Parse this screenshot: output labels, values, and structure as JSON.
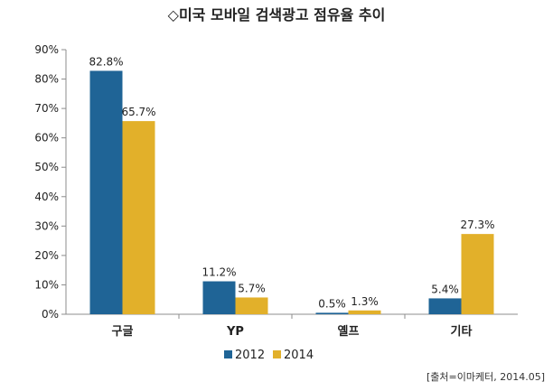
{
  "chart_data": {
    "type": "bar",
    "title": "◇미국 모바일 검색광고 점유율 추이",
    "categories": [
      "구글",
      "YP",
      "옐프",
      "기타"
    ],
    "series": [
      {
        "name": "2012",
        "values": [
          82.8,
          11.2,
          0.5,
          5.4
        ],
        "labels": [
          "82.8%",
          "11.2%",
          "0.5%",
          "5.4%"
        ],
        "color": "#1f6496"
      },
      {
        "name": "2014",
        "values": [
          65.7,
          5.7,
          1.3,
          27.3
        ],
        "labels": [
          "65.7%",
          "5.7%",
          "1.3%",
          "27.3%"
        ],
        "color": "#e2b02a"
      }
    ],
    "ylim": [
      0,
      90
    ],
    "yticks": [
      "0%",
      "10%",
      "20%",
      "30%",
      "40%",
      "50%",
      "60%",
      "70%",
      "80%",
      "90%"
    ],
    "xlabel": "",
    "ylabel": "",
    "grid": false,
    "legend": "bottom",
    "source": "[출처=이마케터, 2014.05]"
  }
}
